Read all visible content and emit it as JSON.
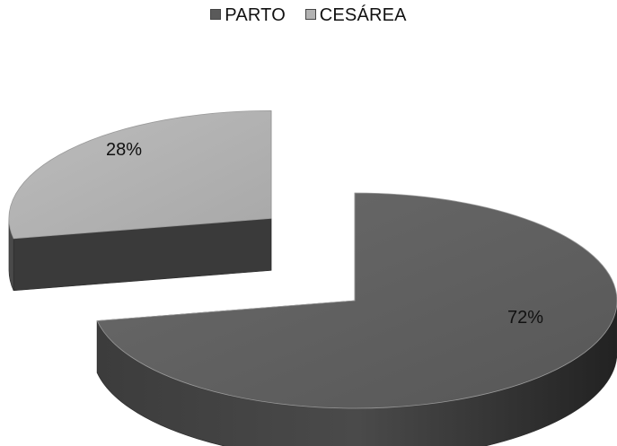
{
  "chart_data": {
    "type": "pie",
    "legend_position": "top-center",
    "categories": [
      "PARTO",
      "CESÁREA"
    ],
    "values": [
      72,
      28
    ],
    "data_labels": [
      "72%",
      "28%"
    ],
    "colors": [
      "#5a5a5a",
      "#b2b2b2"
    ],
    "exploded": true
  }
}
